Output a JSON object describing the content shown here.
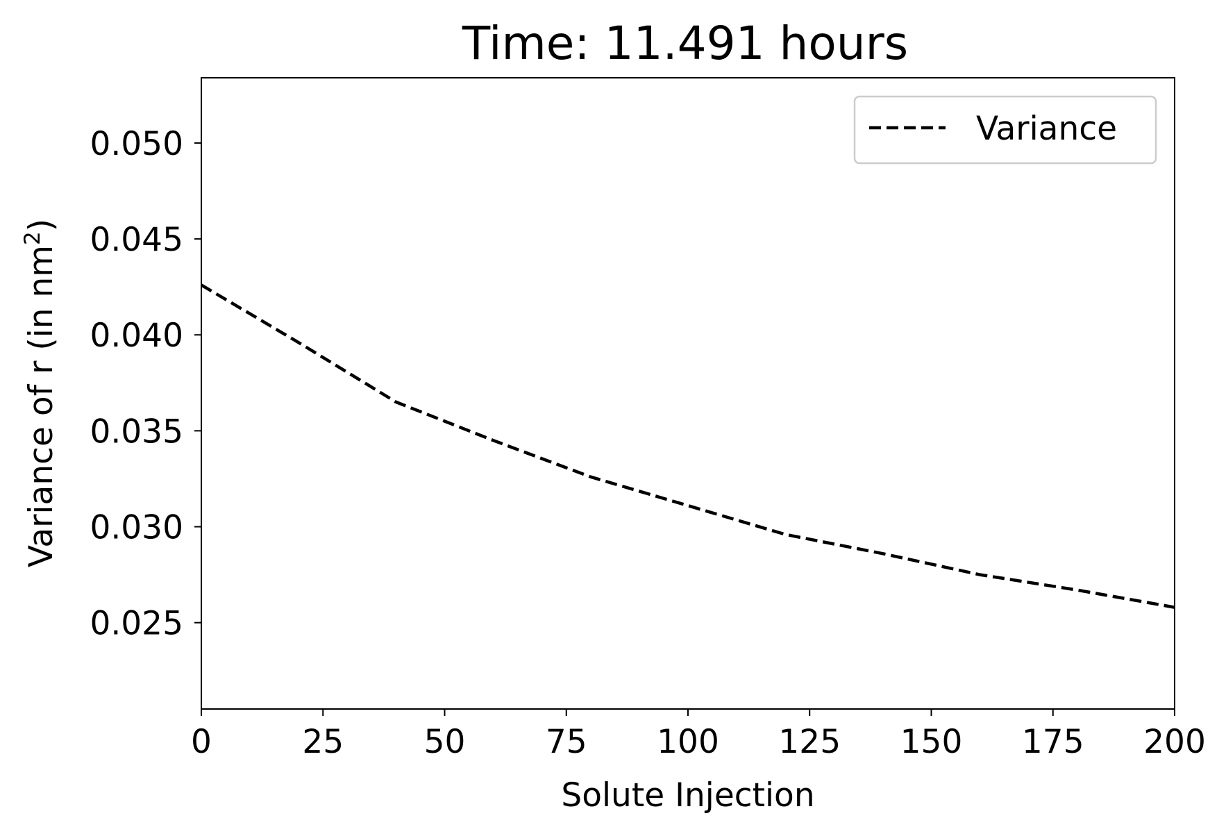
{
  "chart_data": {
    "type": "line",
    "title": "Time: 11.491 hours",
    "xlabel": "Solute Injection",
    "ylabel": "Variance of r (in nm",
    "ylabel_superscript": "2",
    "ylabel_suffix": ")",
    "xlim": [
      0,
      200
    ],
    "ylim": [
      0.0205,
      0.0534
    ],
    "x_ticks": [
      0,
      25,
      50,
      75,
      100,
      125,
      150,
      175,
      200
    ],
    "x_tick_labels": [
      "0",
      "25",
      "50",
      "75",
      "100",
      "125",
      "150",
      "175",
      "200"
    ],
    "y_ticks": [
      0.025,
      0.03,
      0.035,
      0.04,
      0.045,
      0.05
    ],
    "y_tick_labels": [
      "0.025",
      "0.030",
      "0.035",
      "0.040",
      "0.045",
      "0.050"
    ],
    "grid": false,
    "legend_position": "top-right",
    "series": [
      {
        "name": "Variance",
        "line_style": "dashed",
        "color": "#000000",
        "x": [
          0,
          20,
          40,
          60,
          80,
          100,
          120,
          140,
          160,
          180,
          200
        ],
        "y": [
          0.0426,
          0.0396,
          0.0365,
          0.0345,
          0.0326,
          0.0311,
          0.0296,
          0.0286,
          0.0275,
          0.0267,
          0.0258
        ]
      }
    ]
  }
}
